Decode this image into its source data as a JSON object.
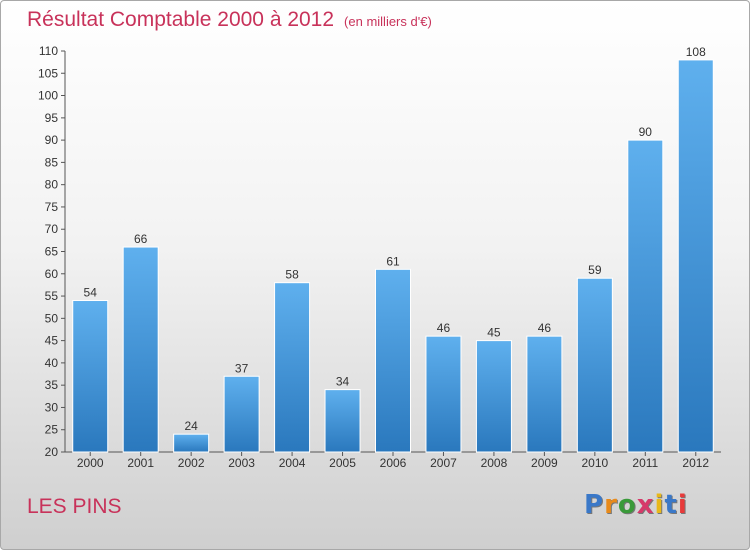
{
  "header": {
    "title": "Résultat Comptable 2000 à 2012",
    "subtitle": "(en milliers d'€)"
  },
  "footer": {
    "place": "LES PINS",
    "logo": {
      "letters": [
        "P",
        "r",
        "o",
        "x",
        "i",
        "t",
        "i"
      ],
      "colors": [
        "#3a78c8",
        "#e88a1a",
        "#3a9a3a",
        "#d63a6a",
        "#e8b81a",
        "#3a78c8",
        "#e83a3a"
      ]
    }
  },
  "colors": {
    "bar_top": "#5fb0ee",
    "bar_bottom": "#2a78bd",
    "title": "#c8325a"
  },
  "chart_data": {
    "type": "bar",
    "title": "Résultat Comptable 2000 à 2012",
    "xlabel": "",
    "ylabel": "",
    "ylim": [
      20,
      110
    ],
    "ytick_step": 5,
    "grid": false,
    "categories": [
      "2000",
      "2001",
      "2002",
      "2003",
      "2004",
      "2005",
      "2006",
      "2007",
      "2008",
      "2009",
      "2010",
      "2011",
      "2012"
    ],
    "values": [
      54,
      66,
      24,
      37,
      58,
      34,
      61,
      46,
      45,
      46,
      59,
      90,
      108
    ]
  }
}
